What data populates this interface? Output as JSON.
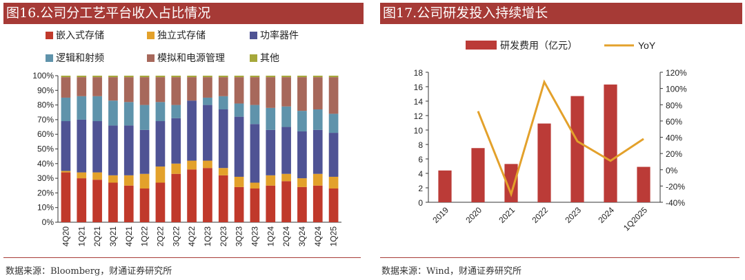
{
  "left_panel": {
    "title": "图16.公司分工艺平台收入占比情况",
    "source": "数据来源：Bloomberg，财通证券研究所"
  },
  "right_panel": {
    "title": "图17.公司研发投入持续增长",
    "source": "数据来源：Wind，财通证券研究所"
  },
  "chart_data": [
    {
      "type": "bar",
      "stacked": true,
      "title": "图16.公司分工艺平台收入占比情况",
      "categories": [
        "4Q20",
        "1Q21",
        "2Q21",
        "3Q21",
        "4Q21",
        "1Q22",
        "2Q22",
        "3Q22",
        "4Q22",
        "1Q23",
        "2Q23",
        "3Q23",
        "4Q23",
        "1Q24",
        "2Q24",
        "3Q24",
        "4Q24",
        "1Q25"
      ],
      "ylim": [
        0,
        100
      ],
      "yticks": [
        "0%",
        "10%",
        "20%",
        "30%",
        "40%",
        "50%",
        "60%",
        "70%",
        "80%",
        "90%",
        "100%"
      ],
      "legend_position": "top",
      "series": [
        {
          "name": "嵌入式存储",
          "color": "#c0392b",
          "values": [
            34,
            30,
            29,
            27,
            25,
            23,
            27,
            33,
            36,
            37,
            32,
            24,
            23,
            25,
            28,
            24,
            25,
            23
          ]
        },
        {
          "name": "独立式存储",
          "color": "#e3a12b",
          "values": [
            1,
            4,
            5,
            5,
            7,
            10,
            11,
            7,
            6,
            5,
            5,
            7,
            4,
            7,
            5,
            6,
            8,
            8
          ]
        },
        {
          "name": "功率器件",
          "color": "#4f5394",
          "values": [
            34,
            36,
            35,
            34,
            34,
            30,
            31,
            31,
            41,
            38,
            40,
            41,
            40,
            31,
            32,
            32,
            30,
            30
          ]
        },
        {
          "name": "逻辑和射频",
          "color": "#5f93ab",
          "values": [
            16,
            16,
            17,
            17,
            16,
            17,
            13,
            9,
            0,
            5,
            9,
            9,
            13,
            15,
            14,
            14,
            14,
            13
          ]
        },
        {
          "name": "模拟和电源管理",
          "color": "#a7685b",
          "values": [
            14,
            13,
            13,
            16,
            17,
            19,
            17,
            19,
            16,
            14,
            13,
            18,
            19,
            21,
            20,
            23,
            22,
            25
          ]
        },
        {
          "name": "其他",
          "color": "#a6a83b",
          "values": [
            1,
            1,
            1,
            1,
            1,
            1,
            1,
            1,
            1,
            1,
            1,
            1,
            1,
            1,
            1,
            1,
            1,
            1
          ]
        }
      ]
    },
    {
      "type": "bar+line",
      "title": "图17.公司研发投入持续增长",
      "categories": [
        "2019",
        "2020",
        "2021",
        "2022",
        "2023",
        "2024",
        "1Q2025"
      ],
      "legend_position": "top",
      "series": [
        {
          "name": "研发费用（亿元）",
          "type": "bar",
          "axis": "left",
          "color": "#bb3b37",
          "values": [
            4.4,
            7.5,
            5.3,
            10.9,
            14.7,
            16.3,
            4.9
          ]
        },
        {
          "name": "YoY",
          "type": "line",
          "axis": "right",
          "color": "#e3a12b",
          "values": [
            null,
            0.72,
            -0.3,
            1.08,
            0.35,
            0.11,
            0.38
          ]
        }
      ],
      "ylim_left": [
        0,
        18
      ],
      "yticks_left": [
        "0",
        "2",
        "4",
        "6",
        "8",
        "10",
        "12",
        "14",
        "16",
        "18"
      ],
      "ylim_right": [
        -0.4,
        1.2
      ],
      "yticks_right": [
        "-40%",
        "-20%",
        "0%",
        "20%",
        "40%",
        "60%",
        "80%",
        "100%",
        "120%"
      ]
    }
  ]
}
